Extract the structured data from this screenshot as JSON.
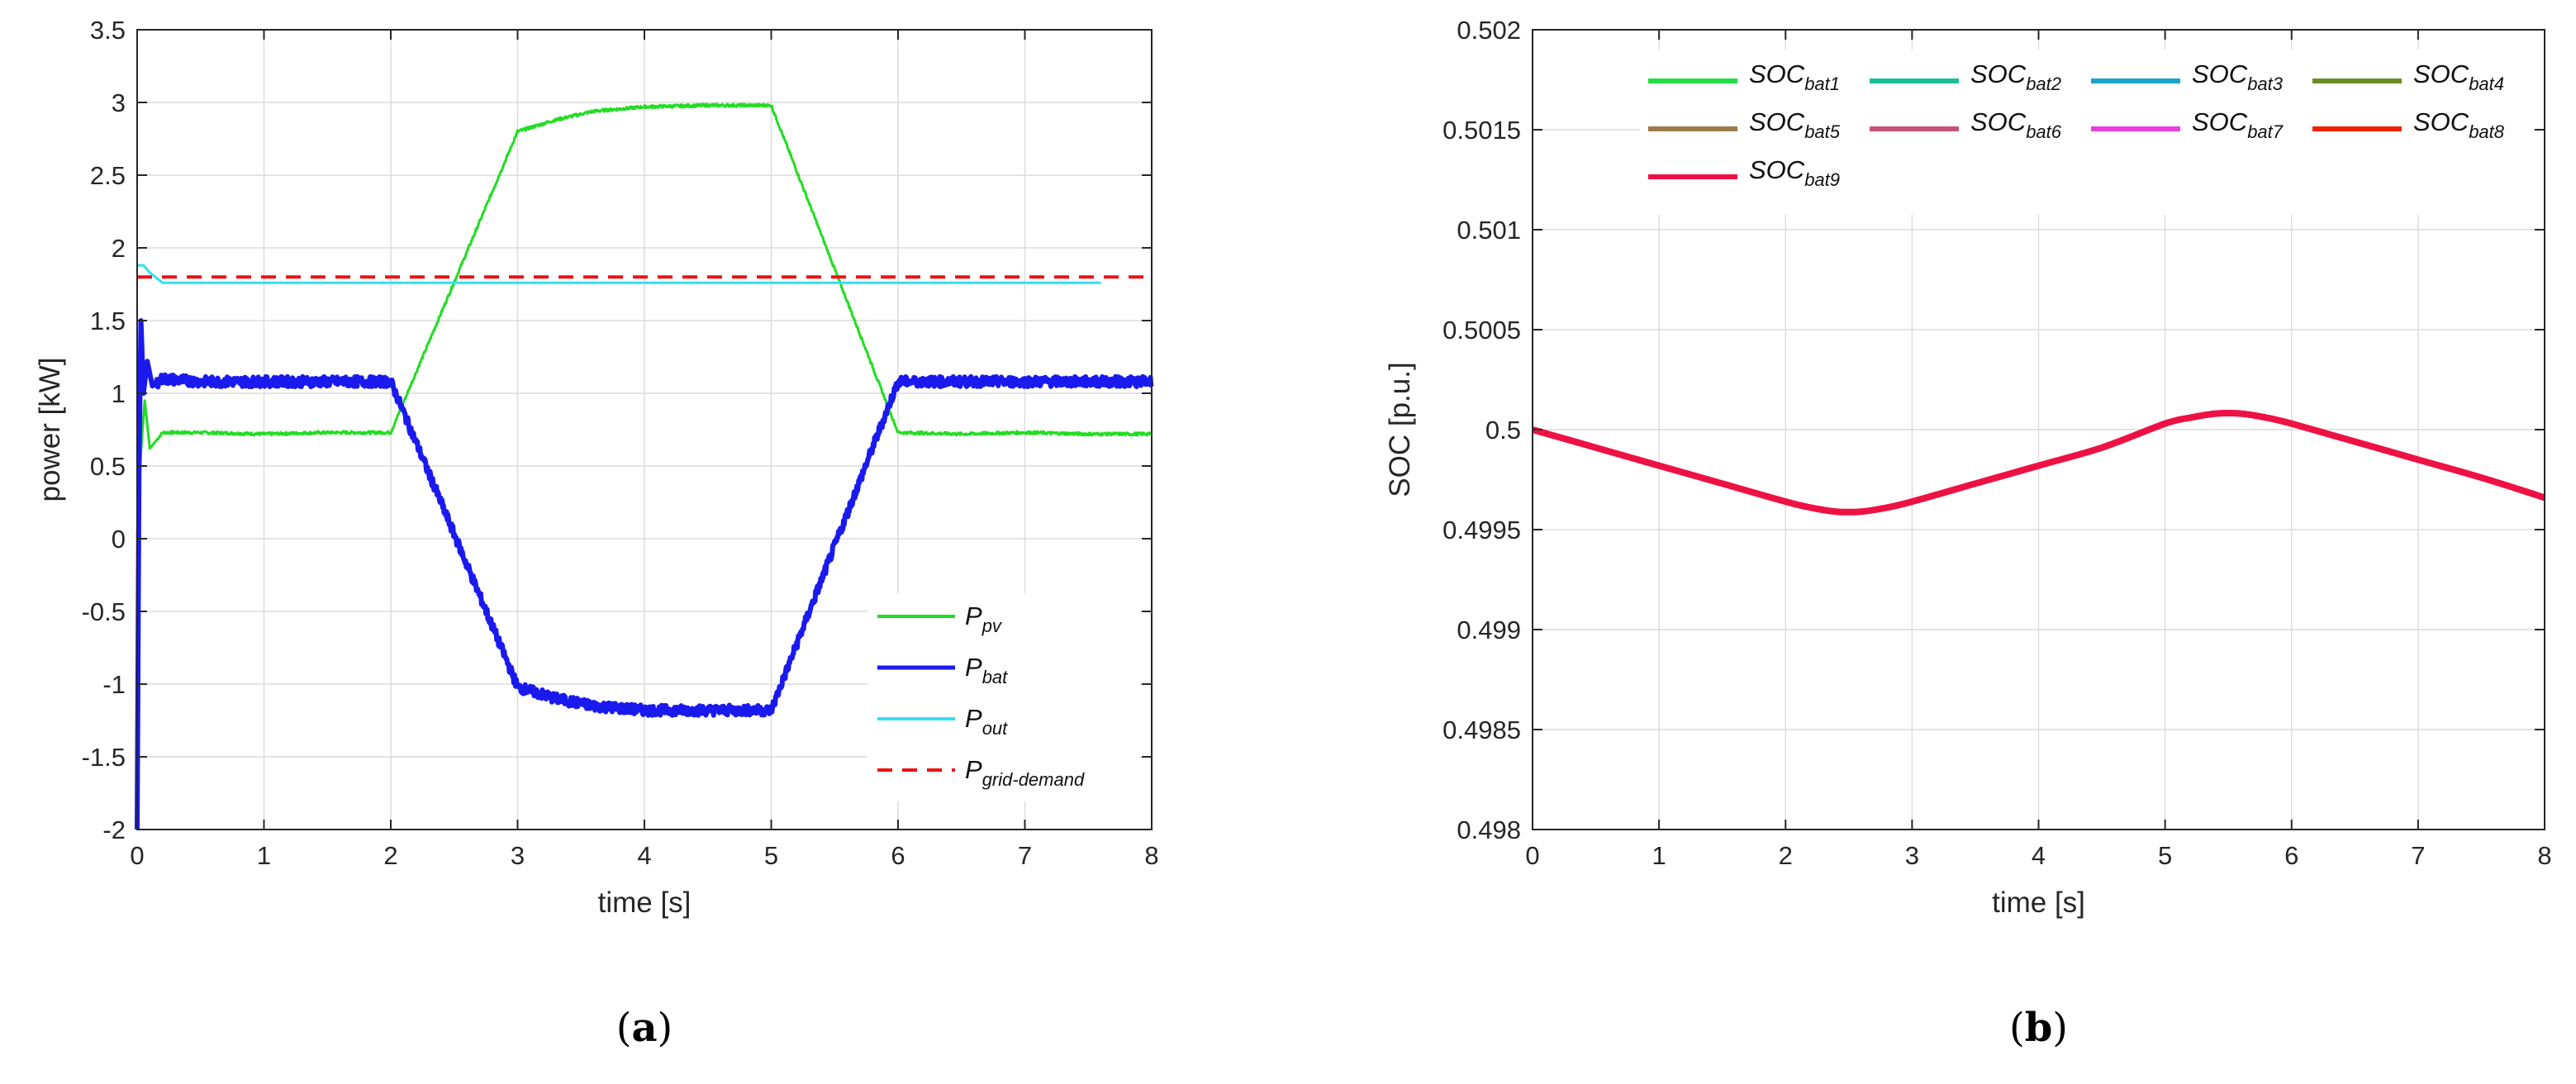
{
  "chart_data": [
    {
      "type": "line",
      "panel_label": "a",
      "xlabel": "time [s]",
      "ylabel": "power [kW]",
      "xlim": [
        0,
        8
      ],
      "ylim": [
        -2,
        3.5
      ],
      "xticks": [
        "0",
        "1",
        "2",
        "3",
        "4",
        "5",
        "6",
        "7",
        "8"
      ],
      "yticks": [
        "-2",
        "-1.5",
        "-1",
        "-0.5",
        "0",
        "0.5",
        "1",
        "1.5",
        "2",
        "2.5",
        "3",
        "3.5"
      ],
      "grid": true,
      "legend_position": "bottom-right",
      "series": [
        {
          "name": "P_pv",
          "label_main": "P",
          "label_sub": "pv",
          "color": "#22dd22",
          "style": "solid",
          "x": [
            0,
            0.03,
            0.06,
            0.1,
            0.2,
            0.5,
            1.0,
            1.5,
            2.0,
            3.0,
            3.3,
            3.6,
            4.0,
            4.5,
            5.0,
            6.0,
            6.5,
            7.0,
            7.5,
            8.0
          ],
          "y": [
            0,
            0.6,
            0.95,
            0.62,
            0.73,
            0.73,
            0.72,
            0.73,
            0.73,
            2.8,
            2.88,
            2.94,
            2.97,
            2.98,
            2.98,
            0.73,
            0.72,
            0.73,
            0.72,
            0.72
          ]
        },
        {
          "name": "P_bat",
          "label_main": "P",
          "label_sub": "bat",
          "color": "#1a1aee",
          "style": "solid-thick",
          "x": [
            0,
            0.015,
            0.03,
            0.05,
            0.08,
            0.12,
            0.2,
            0.5,
            1.0,
            1.5,
            2.0,
            3.0,
            3.3,
            3.6,
            4.0,
            4.5,
            5.0,
            6.0,
            6.5,
            7.0,
            7.5,
            8.0
          ],
          "y": [
            -2,
            0.5,
            1.5,
            1.0,
            1.22,
            1.05,
            1.1,
            1.08,
            1.08,
            1.08,
            1.08,
            -1.02,
            -1.1,
            -1.15,
            -1.18,
            -1.18,
            -1.18,
            1.08,
            1.08,
            1.08,
            1.08,
            1.08
          ]
        },
        {
          "name": "P_out",
          "label_main": "P",
          "label_sub": "out",
          "color": "#33e0f0",
          "style": "solid",
          "x": [
            0,
            0.05,
            0.1,
            0.2,
            1.0,
            2.0,
            3.0,
            4.0,
            5.0,
            6.0,
            7.0,
            7.6
          ],
          "y": [
            1.88,
            1.88,
            1.83,
            1.76,
            1.76,
            1.76,
            1.76,
            1.76,
            1.76,
            1.76,
            1.76,
            1.76
          ]
        },
        {
          "name": "P_grid-demand",
          "label_main": "P",
          "label_sub": "grid-demand",
          "color": "#ee1111",
          "style": "dashed",
          "x": [
            0,
            8
          ],
          "y": [
            1.8,
            1.8
          ]
        }
      ]
    },
    {
      "type": "line",
      "panel_label": "b",
      "xlabel": "time [s]",
      "ylabel": "SOC [p.u.]",
      "xlim": [
        0,
        8
      ],
      "ylim": [
        0.498,
        0.502
      ],
      "xticks": [
        "0",
        "1",
        "2",
        "3",
        "4",
        "5",
        "6",
        "7",
        "8"
      ],
      "yticks": [
        "0.498",
        "0.4985",
        "0.499",
        "0.4995",
        "0.5",
        "0.5005",
        "0.501",
        "0.5015",
        "0.502"
      ],
      "grid": true,
      "legend_position": "top",
      "soc_curve": {
        "x": [
          0,
          0.5,
          1.0,
          1.5,
          2.0,
          2.2,
          2.4,
          2.6,
          2.8,
          3.0,
          3.5,
          4.0,
          4.5,
          5.0,
          5.2,
          5.4,
          5.6,
          5.8,
          6.0,
          6.5,
          7.0,
          7.5,
          8.0
        ],
        "y": [
          0.5,
          0.49991,
          0.49982,
          0.49973,
          0.49964,
          0.49961,
          0.49959,
          0.49959,
          0.49961,
          0.49964,
          0.49973,
          0.49982,
          0.49991,
          0.50003,
          0.50006,
          0.50008,
          0.50008,
          0.50006,
          0.50003,
          0.49994,
          0.49985,
          0.49976,
          0.49966
        ]
      },
      "series": [
        {
          "name": "SOC_bat1",
          "label_main": "SOC",
          "label_sub": "bat1",
          "color": "#22dd44"
        },
        {
          "name": "SOC_bat2",
          "label_main": "SOC",
          "label_sub": "bat2",
          "color": "#1abf96"
        },
        {
          "name": "SOC_bat3",
          "label_main": "SOC",
          "label_sub": "bat3",
          "color": "#1aa3cc"
        },
        {
          "name": "SOC_bat4",
          "label_main": "SOC",
          "label_sub": "bat4",
          "color": "#6b8e23"
        },
        {
          "name": "SOC_bat5",
          "label_main": "SOC",
          "label_sub": "bat5",
          "color": "#9b7a4a"
        },
        {
          "name": "SOC_bat6",
          "label_main": "SOC",
          "label_sub": "bat6",
          "color": "#c8527a"
        },
        {
          "name": "SOC_bat7",
          "label_main": "SOC",
          "label_sub": "bat7",
          "color": "#e83ee0"
        },
        {
          "name": "SOC_bat8",
          "label_main": "SOC",
          "label_sub": "bat8",
          "color": "#ee2200"
        },
        {
          "name": "SOC_bat9",
          "label_main": "SOC",
          "label_sub": "bat9",
          "color": "#ee1144"
        }
      ]
    }
  ]
}
